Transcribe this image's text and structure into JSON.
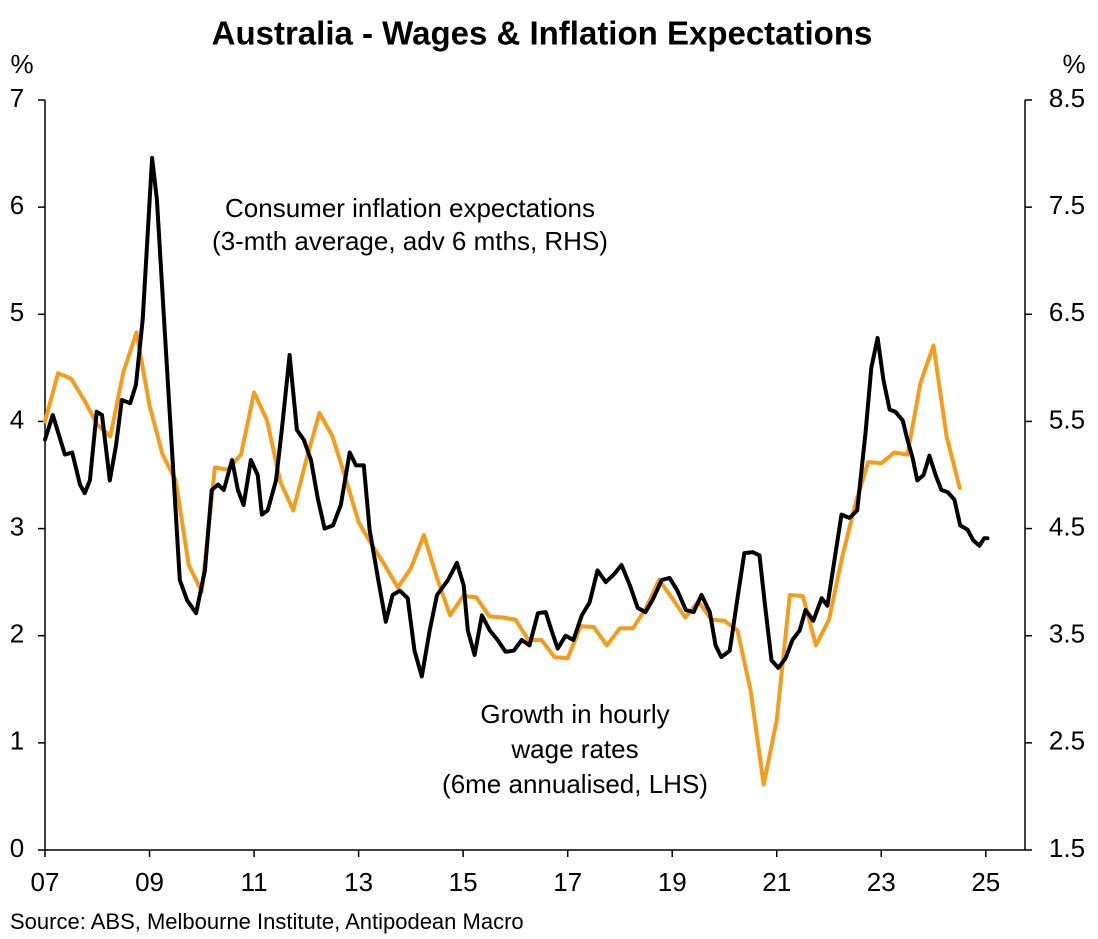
{
  "chart_data": {
    "type": "line",
    "title": "Australia - Wages & Inflation Expectations",
    "ylabel": "%",
    "y2label": "%",
    "source": "Source: ABS, Melbourne Institute, Antipodean Macro",
    "xlim": [
      2007,
      2025.75
    ],
    "xticks": [
      {
        "value": 2007,
        "label": "07"
      },
      {
        "value": 2009,
        "label": "09"
      },
      {
        "value": 2011,
        "label": "11"
      },
      {
        "value": 2013,
        "label": "13"
      },
      {
        "value": 2015,
        "label": "15"
      },
      {
        "value": 2017,
        "label": "17"
      },
      {
        "value": 2019,
        "label": "19"
      },
      {
        "value": 2021,
        "label": "21"
      },
      {
        "value": 2023,
        "label": "23"
      },
      {
        "value": 2025,
        "label": "25"
      }
    ],
    "ylim": [
      0,
      7
    ],
    "yticks": [
      0,
      1,
      2,
      3,
      4,
      5,
      6,
      7
    ],
    "y2lim": [
      1.5,
      8.5
    ],
    "y2ticks": [
      1.5,
      2.5,
      3.5,
      4.5,
      5.5,
      6.5,
      7.5,
      8.5
    ],
    "grid": false,
    "annotations": [
      {
        "lines": [
          "Consumer inflation expectations",
          "(3-mth average, adv 6 mths, RHS)"
        ]
      },
      {
        "lines": [
          "Growth in hourly",
          "wage rates",
          "(6me annualised, LHS)"
        ]
      }
    ],
    "series": [
      {
        "color": "#000000",
        "axis": "y2",
        "x": [
          2007.0,
          2007.15,
          2007.38,
          2007.52,
          2007.67,
          2007.76,
          2007.86,
          2007.99,
          2008.09,
          2008.24,
          2008.36,
          2008.47,
          2008.63,
          2008.74,
          2008.87,
          2009.05,
          2009.14,
          2009.29,
          2009.43,
          2009.58,
          2009.72,
          2009.89,
          2010.06,
          2010.19,
          2010.31,
          2010.42,
          2010.58,
          2010.69,
          2010.8,
          2010.94,
          2011.07,
          2011.15,
          2011.26,
          2011.42,
          2011.53,
          2011.68,
          2011.82,
          2011.95,
          2012.09,
          2012.22,
          2012.35,
          2012.51,
          2012.66,
          2012.83,
          2012.95,
          2013.1,
          2013.21,
          2013.37,
          2013.52,
          2013.65,
          2013.79,
          2013.94,
          2014.07,
          2014.21,
          2014.36,
          2014.5,
          2014.71,
          2014.88,
          2015.01,
          2015.09,
          2015.22,
          2015.36,
          2015.51,
          2015.66,
          2015.81,
          2015.97,
          2016.12,
          2016.27,
          2016.43,
          2016.58,
          2016.69,
          2016.81,
          2016.96,
          2017.11,
          2017.27,
          2017.42,
          2017.57,
          2017.73,
          2017.88,
          2018.03,
          2018.19,
          2018.34,
          2018.49,
          2018.64,
          2018.8,
          2018.95,
          2019.1,
          2019.26,
          2019.41,
          2019.56,
          2019.72,
          2019.83,
          2019.94,
          2020.1,
          2020.25,
          2020.38,
          2020.54,
          2020.67,
          2020.77,
          2020.9,
          2021.03,
          2021.17,
          2021.3,
          2021.44,
          2021.55,
          2021.7,
          2021.86,
          2021.97,
          2022.09,
          2022.24,
          2022.39,
          2022.54,
          2022.7,
          2022.81,
          2022.93,
          2023.04,
          2023.16,
          2023.27,
          2023.41,
          2023.5,
          2023.6,
          2023.69,
          2023.81,
          2023.92,
          2024.04,
          2024.15,
          2024.27,
          2024.4,
          2024.51,
          2024.65,
          2024.76,
          2024.88,
          2024.97,
          2025.03
        ],
        "values": [
          5.33,
          5.56,
          5.19,
          5.21,
          4.91,
          4.83,
          4.95,
          5.59,
          5.56,
          4.95,
          5.28,
          5.7,
          5.67,
          5.84,
          6.45,
          7.96,
          7.57,
          6.35,
          5.23,
          4.02,
          3.83,
          3.71,
          4.11,
          4.86,
          4.91,
          4.86,
          5.14,
          4.86,
          4.72,
          5.14,
          5.0,
          4.63,
          4.67,
          4.95,
          5.42,
          6.12,
          5.42,
          5.33,
          5.14,
          4.78,
          4.5,
          4.53,
          4.72,
          5.21,
          5.09,
          5.09,
          4.49,
          4.04,
          3.63,
          3.88,
          3.92,
          3.85,
          3.36,
          3.12,
          3.55,
          3.88,
          4.02,
          4.18,
          3.97,
          3.55,
          3.32,
          3.69,
          3.55,
          3.46,
          3.35,
          3.36,
          3.46,
          3.41,
          3.71,
          3.72,
          3.55,
          3.38,
          3.5,
          3.46,
          3.69,
          3.81,
          4.11,
          4.0,
          4.07,
          4.16,
          3.97,
          3.76,
          3.72,
          3.85,
          4.02,
          4.04,
          3.92,
          3.74,
          3.72,
          3.88,
          3.72,
          3.41,
          3.3,
          3.36,
          3.85,
          4.27,
          4.28,
          4.25,
          3.81,
          3.27,
          3.2,
          3.29,
          3.46,
          3.55,
          3.74,
          3.64,
          3.85,
          3.78,
          4.16,
          4.63,
          4.6,
          4.67,
          5.4,
          6.0,
          6.28,
          5.89,
          5.61,
          5.59,
          5.51,
          5.33,
          5.16,
          4.95,
          5.0,
          5.18,
          5.0,
          4.86,
          4.84,
          4.77,
          4.53,
          4.49,
          4.39,
          4.34,
          4.41,
          4.41
        ]
      },
      {
        "color": "#f59c1a",
        "axis": "y",
        "x": [
          2007.0,
          2007.25,
          2007.5,
          2007.75,
          2008.0,
          2008.25,
          2008.5,
          2008.75,
          2009.0,
          2009.25,
          2009.5,
          2009.75,
          2010.0,
          2010.25,
          2010.5,
          2010.75,
          2011.0,
          2011.25,
          2011.5,
          2011.75,
          2012.0,
          2012.25,
          2012.5,
          2012.75,
          2013.0,
          2013.25,
          2013.5,
          2013.75,
          2014.0,
          2014.25,
          2014.5,
          2014.75,
          2015.0,
          2015.25,
          2015.5,
          2015.75,
          2016.0,
          2016.25,
          2016.5,
          2016.75,
          2017.0,
          2017.25,
          2017.5,
          2017.75,
          2018.0,
          2018.25,
          2018.5,
          2018.75,
          2019.0,
          2019.25,
          2019.5,
          2019.75,
          2020.0,
          2020.25,
          2020.5,
          2020.75,
          2021.0,
          2021.25,
          2021.5,
          2021.75,
          2022.0,
          2022.25,
          2022.5,
          2022.75,
          2023.0,
          2023.25,
          2023.5,
          2023.75,
          2024.0,
          2024.25,
          2024.5
        ],
        "values": [
          4.0,
          4.45,
          4.4,
          4.2,
          3.97,
          3.86,
          4.46,
          4.83,
          4.15,
          3.69,
          3.45,
          2.66,
          2.41,
          3.57,
          3.55,
          3.69,
          4.27,
          4.01,
          3.44,
          3.17,
          3.64,
          4.08,
          3.86,
          3.47,
          3.06,
          2.85,
          2.66,
          2.45,
          2.63,
          2.94,
          2.54,
          2.19,
          2.37,
          2.36,
          2.18,
          2.17,
          2.15,
          1.96,
          1.96,
          1.8,
          1.79,
          2.09,
          2.08,
          1.91,
          2.07,
          2.07,
          2.26,
          2.52,
          2.35,
          2.17,
          2.32,
          2.15,
          2.14,
          2.05,
          1.49,
          0.61,
          1.21,
          2.38,
          2.37,
          1.91,
          2.15,
          2.73,
          3.22,
          3.62,
          3.61,
          3.71,
          3.69,
          4.36,
          4.71,
          3.86,
          3.38
        ]
      }
    ]
  }
}
